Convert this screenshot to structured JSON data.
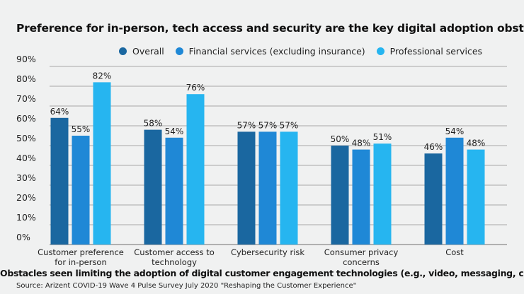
{
  "chart_data": {
    "type": "bar",
    "title": "Preference for in-person, tech access and security are the key digital adoption obstacles",
    "xlabel": "Obstacles seen limiting the adoption of digital customer engagement technologies (e.g., video, messaging, chat)",
    "ylabel": "",
    "source": "Source: Arizent COVID-19 Wave 4 Pulse Survey July 2020 \"Reshaping the Customer Experience\"",
    "categories": [
      [
        "Customer preference",
        "for in-person"
      ],
      [
        "Customer access to",
        "technology"
      ],
      [
        "Cybersecurity risk"
      ],
      [
        "Consumer privacy",
        "concerns"
      ],
      [
        "Cost"
      ]
    ],
    "series": [
      {
        "name": "Overall",
        "color": "#1a67a0",
        "values": [
          64,
          58,
          57,
          50,
          46
        ]
      },
      {
        "name": "Financial services (excluding insurance)",
        "color": "#1f88d6",
        "values": [
          55,
          54,
          57,
          48,
          54
        ]
      },
      {
        "name": "Professional services",
        "color": "#26b5f0",
        "values": [
          82,
          76,
          57,
          51,
          48
        ]
      }
    ],
    "ylim": [
      0,
      90
    ],
    "yticks": [
      0,
      10,
      20,
      30,
      40,
      50,
      60,
      70,
      80,
      90
    ],
    "ytick_format": "%",
    "grid": true,
    "legend_position": "top"
  }
}
